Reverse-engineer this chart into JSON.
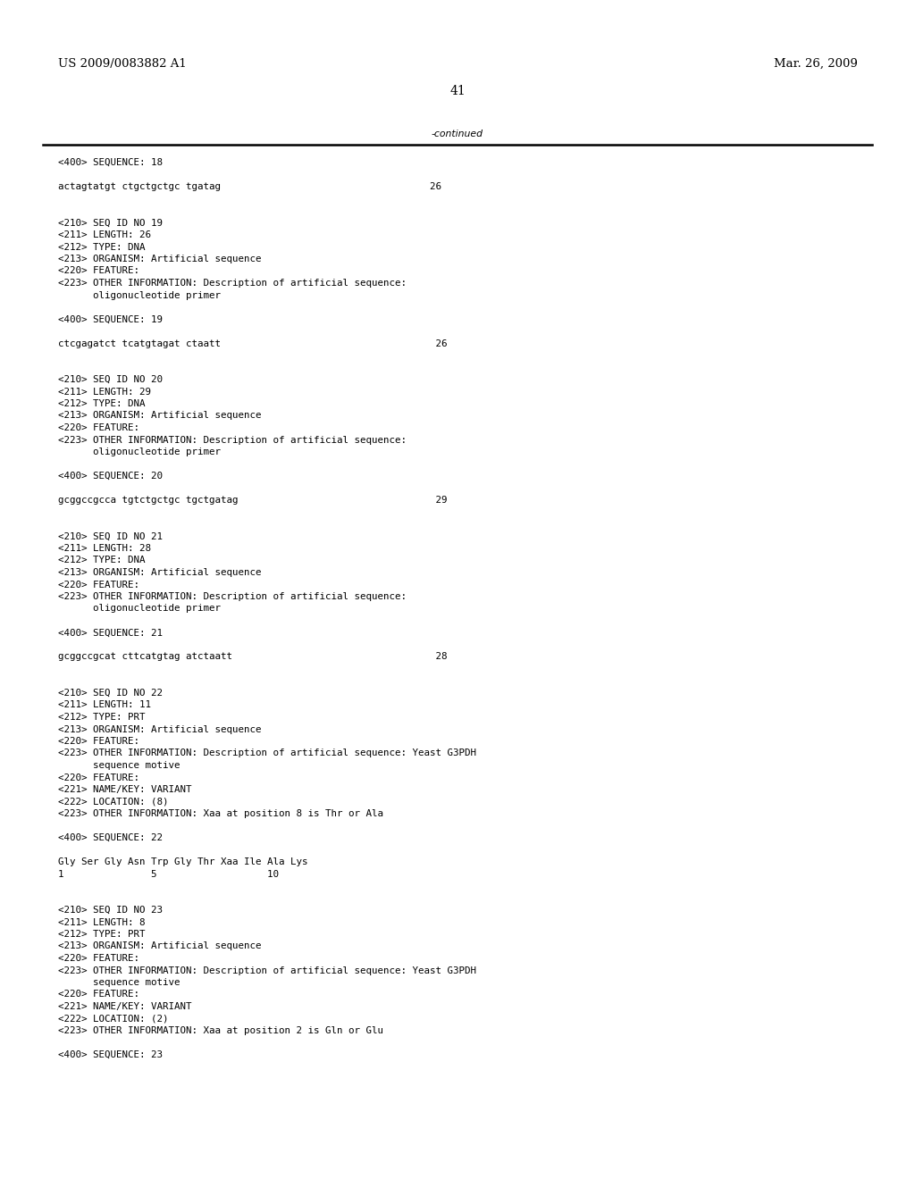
{
  "header_left": "US 2009/0083882 A1",
  "header_right": "Mar. 26, 2009",
  "page_number": "41",
  "continued_label": "-continued",
  "background_color": "#ffffff",
  "text_color": "#000000",
  "font_size_header": 9.5,
  "font_size_body": 7.8,
  "font_size_page": 10,
  "lines": [
    "<400> SEQUENCE: 18",
    "",
    "actagtatgt ctgctgctgc tgatag                                    26",
    "",
    "",
    "<210> SEQ ID NO 19",
    "<211> LENGTH: 26",
    "<212> TYPE: DNA",
    "<213> ORGANISM: Artificial sequence",
    "<220> FEATURE:",
    "<223> OTHER INFORMATION: Description of artificial sequence:",
    "      oligonucleotide primer",
    "",
    "<400> SEQUENCE: 19",
    "",
    "ctcgagatct tcatgtagat ctaatt                                     26",
    "",
    "",
    "<210> SEQ ID NO 20",
    "<211> LENGTH: 29",
    "<212> TYPE: DNA",
    "<213> ORGANISM: Artificial sequence",
    "<220> FEATURE:",
    "<223> OTHER INFORMATION: Description of artificial sequence:",
    "      oligonucleotide primer",
    "",
    "<400> SEQUENCE: 20",
    "",
    "gcggccgcca tgtctgctgc tgctgatag                                  29",
    "",
    "",
    "<210> SEQ ID NO 21",
    "<211> LENGTH: 28",
    "<212> TYPE: DNA",
    "<213> ORGANISM: Artificial sequence",
    "<220> FEATURE:",
    "<223> OTHER INFORMATION: Description of artificial sequence:",
    "      oligonucleotide primer",
    "",
    "<400> SEQUENCE: 21",
    "",
    "gcggccgcat cttcatgtag atctaatt                                   28",
    "",
    "",
    "<210> SEQ ID NO 22",
    "<211> LENGTH: 11",
    "<212> TYPE: PRT",
    "<213> ORGANISM: Artificial sequence",
    "<220> FEATURE:",
    "<223> OTHER INFORMATION: Description of artificial sequence: Yeast G3PDH",
    "      sequence motive",
    "<220> FEATURE:",
    "<221> NAME/KEY: VARIANT",
    "<222> LOCATION: (8)",
    "<223> OTHER INFORMATION: Xaa at position 8 is Thr or Ala",
    "",
    "<400> SEQUENCE: 22",
    "",
    "Gly Ser Gly Asn Trp Gly Thr Xaa Ile Ala Lys",
    "1               5                   10",
    "",
    "",
    "<210> SEQ ID NO 23",
    "<211> LENGTH: 8",
    "<212> TYPE: PRT",
    "<213> ORGANISM: Artificial sequence",
    "<220> FEATURE:",
    "<223> OTHER INFORMATION: Description of artificial sequence: Yeast G3PDH",
    "      sequence motive",
    "<220> FEATURE:",
    "<221> NAME/KEY: VARIANT",
    "<222> LOCATION: (2)",
    "<223> OTHER INFORMATION: Xaa at position 2 is Gln or Glu",
    "",
    "<400> SEQUENCE: 23"
  ]
}
